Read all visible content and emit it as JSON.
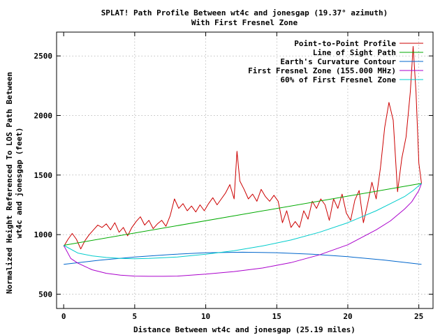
{
  "chart_data": {
    "type": "line",
    "title": "SPLAT! Path Profile Between wt4c and jonesgap (19.37° azimuth)",
    "subtitle": "With First Fresnel Zone",
    "xlabel": "Distance Between wt4c and jonesgap (25.19 miles)",
    "ylabel_line1": "Normalized Height Referenced To LOS Path Between",
    "ylabel_line2": "wt4c and jonesgap (feet)",
    "xlim": [
      -0.5,
      26
    ],
    "ylim": [
      380,
      2700
    ],
    "xticks": [
      "0",
      "5",
      "10",
      "15",
      "20",
      "25"
    ],
    "yticks": [
      "500",
      "1000",
      "1500",
      "2000",
      "2500"
    ],
    "grid": true,
    "legend_position": "top-right",
    "series": [
      {
        "name": "Point-to-Point Profile",
        "color": "#cc0000",
        "x": [
          0,
          0.3,
          0.6,
          0.9,
          1.2,
          1.5,
          1.8,
          2.1,
          2.4,
          2.7,
          3.0,
          3.3,
          3.6,
          3.9,
          4.2,
          4.5,
          4.8,
          5.1,
          5.4,
          5.7,
          6.0,
          6.3,
          6.6,
          6.9,
          7.2,
          7.5,
          7.8,
          8.1,
          8.4,
          8.7,
          9.0,
          9.3,
          9.6,
          9.9,
          10.2,
          10.5,
          10.8,
          11.1,
          11.4,
          11.7,
          12.0,
          12.2,
          12.4,
          12.7,
          13.0,
          13.3,
          13.6,
          13.9,
          14.2,
          14.5,
          14.8,
          15.1,
          15.4,
          15.7,
          16.0,
          16.3,
          16.6,
          16.9,
          17.2,
          17.5,
          17.8,
          18.1,
          18.4,
          18.7,
          19.0,
          19.3,
          19.6,
          19.9,
          20.2,
          20.5,
          20.8,
          21.1,
          21.4,
          21.7,
          22.0,
          22.3,
          22.6,
          22.9,
          23.2,
          23.5,
          23.8,
          24.1,
          24.4,
          24.6,
          24.8,
          25.0,
          25.19
        ],
        "values": [
          900,
          960,
          1010,
          960,
          880,
          950,
          1000,
          1040,
          1080,
          1060,
          1090,
          1040,
          1100,
          1020,
          1060,
          990,
          1060,
          1110,
          1150,
          1080,
          1120,
          1050,
          1090,
          1120,
          1070,
          1160,
          1300,
          1220,
          1260,
          1200,
          1240,
          1190,
          1250,
          1200,
          1260,
          1310,
          1250,
          1300,
          1350,
          1420,
          1300,
          1700,
          1450,
          1380,
          1300,
          1340,
          1280,
          1380,
          1320,
          1280,
          1330,
          1280,
          1100,
          1200,
          1060,
          1110,
          1060,
          1200,
          1130,
          1280,
          1220,
          1300,
          1250,
          1120,
          1300,
          1220,
          1340,
          1180,
          1120,
          1290,
          1370,
          1100,
          1260,
          1440,
          1300,
          1560,
          1900,
          2110,
          1960,
          1360,
          1640,
          1820,
          2200,
          2580,
          2200,
          1600,
          1430
        ]
      },
      {
        "name": "Line of Sight Path",
        "color": "#00aa00",
        "x": [
          0,
          25.19
        ],
        "values": [
          910,
          1430
        ]
      },
      {
        "name": "Earth's Curvature Contour",
        "color": "#0066cc",
        "x": [
          0,
          2.5,
          5,
          7.5,
          10,
          12.6,
          15,
          17.5,
          20,
          22.5,
          25.19
        ],
        "values": [
          750,
          785,
          812,
          833,
          848,
          852,
          848,
          835,
          815,
          787,
          750
        ]
      },
      {
        "name": "First Fresnel Zone (155.000 MHz)",
        "color": "#aa00cc",
        "x": [
          0,
          0.5,
          1,
          2,
          3,
          4,
          5,
          6,
          7,
          8,
          10,
          12,
          14,
          16,
          18,
          20,
          22,
          23,
          24,
          24.5,
          25,
          25.19
        ],
        "values": [
          910,
          800,
          760,
          705,
          675,
          660,
          652,
          650,
          650,
          652,
          668,
          690,
          720,
          765,
          830,
          915,
          1040,
          1115,
          1215,
          1275,
          1370,
          1430
        ]
      },
      {
        "name": "60% of First Fresnel Zone",
        "color": "#00cccc",
        "x": [
          0,
          1,
          2,
          3,
          4,
          5,
          6,
          8,
          10,
          12,
          14,
          16,
          18,
          20,
          22,
          23,
          24,
          24.6,
          25.19
        ],
        "values": [
          910,
          845,
          822,
          808,
          800,
          798,
          800,
          812,
          835,
          865,
          905,
          955,
          1020,
          1100,
          1200,
          1260,
          1320,
          1370,
          1430
        ]
      }
    ]
  }
}
